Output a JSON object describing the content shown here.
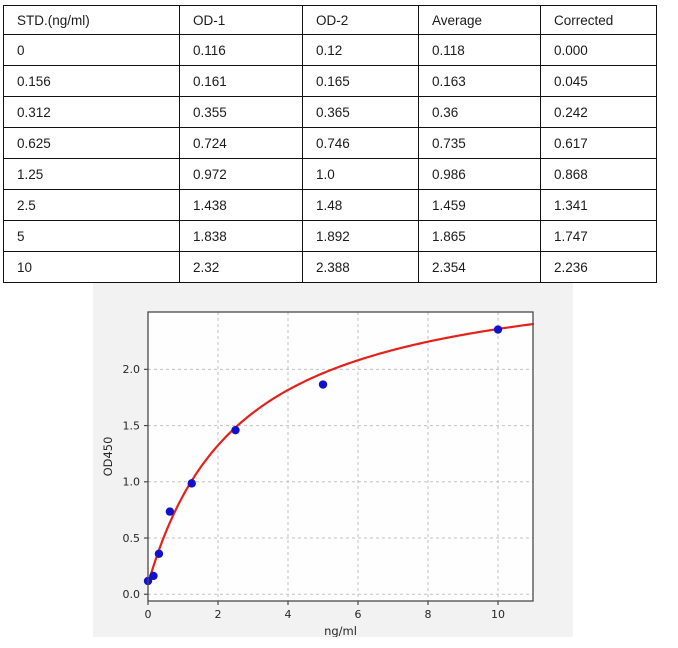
{
  "table": {
    "columns": [
      "STD.(ng/ml)",
      "OD-1",
      "OD-2",
      "Average",
      "Corrected"
    ],
    "rows": [
      [
        "0",
        "0.116",
        "0.12",
        "0.118",
        "0.000"
      ],
      [
        "0.156",
        "0.161",
        "0.165",
        "0.163",
        "0.045"
      ],
      [
        "0.312",
        "0.355",
        "0.365",
        "0.36",
        "0.242"
      ],
      [
        "0.625",
        "0.724",
        "0.746",
        "0.735",
        "0.617"
      ],
      [
        "1.25",
        "0.972",
        "1.0",
        "0.986",
        "0.868"
      ],
      [
        "2.5",
        "1.438",
        "1.48",
        "1.459",
        "1.341"
      ],
      [
        "5",
        "1.838",
        "1.892",
        "1.865",
        "1.747"
      ],
      [
        "10",
        "2.32",
        "2.388",
        "2.354",
        "2.236"
      ]
    ]
  },
  "chart_data": {
    "type": "scatter",
    "title": "",
    "xlabel": "ng/ml",
    "ylabel": "OD450",
    "xlim": [
      0,
      11
    ],
    "ylim": [
      -0.06,
      2.51
    ],
    "xticks": [
      0,
      2,
      4,
      6,
      8,
      10
    ],
    "xtick_labels": [
      "0",
      "2",
      "4",
      "6",
      "8",
      "10"
    ],
    "yticks": [
      0.0,
      0.5,
      1.0,
      1.5,
      2.0
    ],
    "ytick_labels": [
      "0.0",
      "0.5",
      "1.0",
      "1.5",
      "2.0"
    ],
    "grid": true,
    "grid_style": "dashed",
    "legend_position": "none",
    "series": [
      {
        "name": "standards",
        "type": "scatter",
        "x": [
          0,
          0.156,
          0.312,
          0.625,
          1.25,
          2.5,
          5,
          10
        ],
        "y": [
          0.118,
          0.163,
          0.36,
          0.735,
          0.986,
          1.459,
          1.865,
          2.354
        ],
        "marker_color": "#1111cc"
      },
      {
        "name": "fit-curve",
        "type": "line",
        "fit_model": "saturating",
        "fit_params": {
          "y0": 0.09,
          "span": 2.87,
          "k": 2.65
        },
        "x_range": [
          0,
          11
        ],
        "line_color": "#e3231b"
      }
    ],
    "colors": {
      "panel_bg": "#f2f2f2",
      "plot_bg": "#fefefe",
      "spine": "#4a4a4a",
      "grid": "#c2c2c2"
    }
  }
}
